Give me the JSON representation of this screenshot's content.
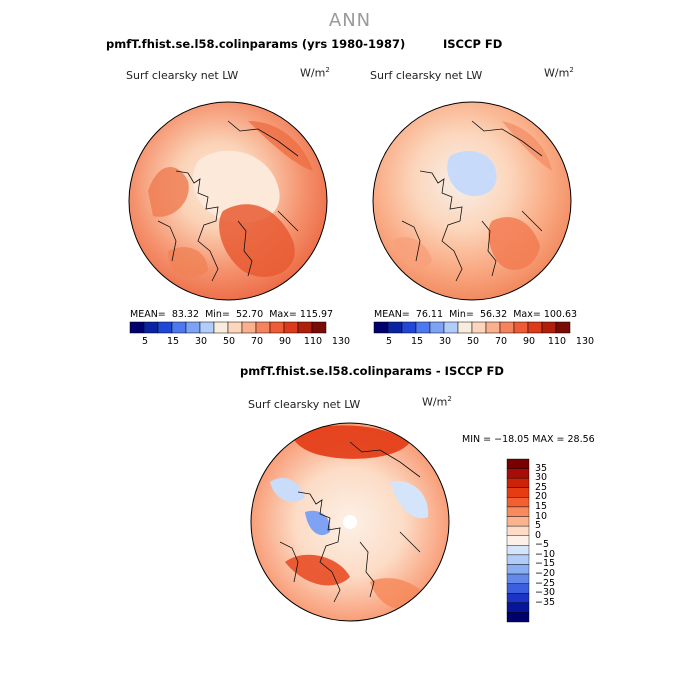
{
  "page": {
    "title": "ANN"
  },
  "panels": [
    {
      "title": "pmfT.fhist.se.l58.colinparams (yrs 1980-1987)",
      "variable": "Surf clearsky net LW",
      "units_base": "W/m",
      "units_sup": "2",
      "stats": {
        "mean_label": "MEAN=",
        "mean": "83.32",
        "min_label": "Min=",
        "min": "52.70",
        "max_label": "Max=",
        "max": "115.97"
      },
      "colorbar_ticks": [
        "5",
        "15",
        "30",
        "50",
        "70",
        "90",
        "110",
        "130"
      ]
    },
    {
      "title": "ISCCP FD",
      "variable": "Surf clearsky net LW",
      "units_base": "W/m",
      "units_sup": "2",
      "stats": {
        "mean_label": "MEAN=",
        "mean": "76.11",
        "min_label": "Min=",
        "min": "56.32",
        "max_label": "Max=",
        "max": "100.63"
      },
      "colorbar_ticks": [
        "5",
        "15",
        "30",
        "50",
        "70",
        "90",
        "110",
        "130"
      ]
    },
    {
      "title": "pmfT.fhist.se.l58.colinparams - ISCCP FD",
      "variable": "Surf clearsky net LW",
      "units_base": "W/m",
      "units_sup": "2",
      "stats_line": "MIN = −18.05  MAX =  28.56",
      "colorbar_ticks": [
        "35",
        "30",
        "25",
        "20",
        "15",
        "10",
        "5",
        "0",
        "−5",
        "−10",
        "−15",
        "−20",
        "−25",
        "−30",
        "−35"
      ]
    }
  ],
  "colors": {
    "abs_scale": [
      "#00006e",
      "#0b22a3",
      "#2147d6",
      "#4d79f0",
      "#7da3f5",
      "#b3cdfa",
      "#f8ecdf",
      "#fcd6bc",
      "#f9b08d",
      "#f5845e",
      "#ee5b36",
      "#dc3a1a",
      "#b01f0c",
      "#7a0a05"
    ],
    "diff_scale": [
      "#7a0000",
      "#a80c06",
      "#cc2208",
      "#e63c12",
      "#f25f30",
      "#f78b5e",
      "#fab38e",
      "#fcdcc6",
      "#fdf0e6",
      "#d4e4fb",
      "#b1ccf7",
      "#8aaef2",
      "#6489ea",
      "#3c5fe0",
      "#1b34c6",
      "#06169a",
      "#00006e"
    ]
  }
}
